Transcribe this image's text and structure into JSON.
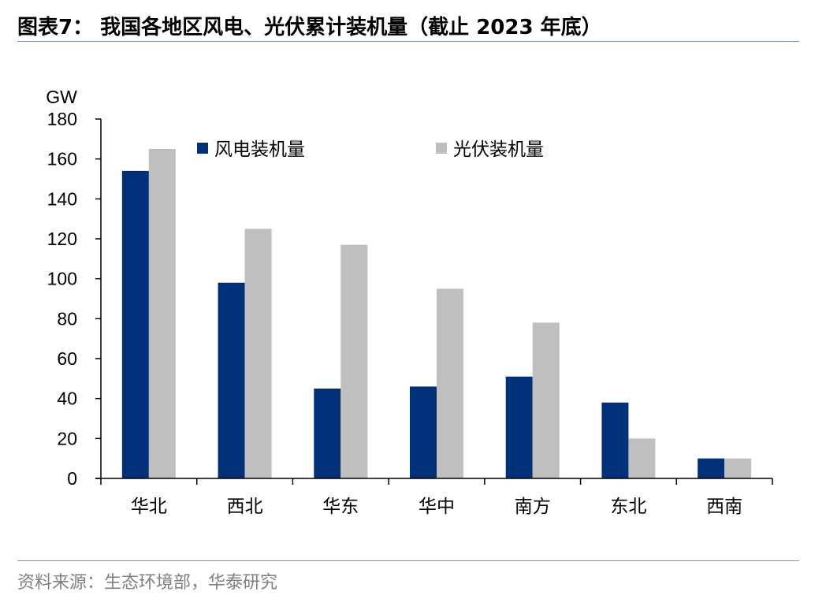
{
  "header": {
    "title": "图表7： 我国各地区风电、光伏累计装机量（截止 2023 年底）"
  },
  "footer": {
    "source": "资料来源：生态环境部，华泰研究"
  },
  "chart_data": {
    "type": "bar",
    "ylabel": "GW",
    "ylim": [
      0,
      180
    ],
    "yticks": [
      0,
      20,
      40,
      60,
      80,
      100,
      120,
      140,
      160,
      180
    ],
    "grid": false,
    "legend_position": "top",
    "categories": [
      "华北",
      "西北",
      "华东",
      "华中",
      "南方",
      "东北",
      "西南"
    ],
    "series": [
      {
        "name": "风电装机量",
        "color": "#003178",
        "values": [
          154,
          98,
          45,
          46,
          51,
          38,
          10
        ]
      },
      {
        "name": "光伏装机量",
        "color": "#bfbfbf",
        "values": [
          165,
          125,
          117,
          95,
          78,
          20,
          10
        ]
      }
    ]
  }
}
